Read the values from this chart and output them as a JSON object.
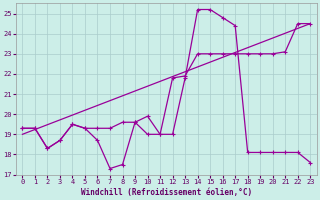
{
  "xlabel": "Windchill (Refroidissement éolien,°C)",
  "background_color": "#cceee8",
  "grid_color": "#aacccc",
  "line_color": "#990099",
  "xlim": [
    -0.5,
    23.5
  ],
  "ylim": [
    17,
    25.5
  ],
  "xticks": [
    0,
    1,
    2,
    3,
    4,
    5,
    6,
    7,
    8,
    9,
    10,
    11,
    12,
    13,
    14,
    15,
    16,
    17,
    18,
    19,
    20,
    21,
    22,
    23
  ],
  "yticks": [
    17,
    18,
    19,
    20,
    21,
    22,
    23,
    24,
    25
  ],
  "line1_x": [
    0,
    1,
    2,
    3,
    4,
    5,
    6,
    7,
    8,
    9,
    10,
    11,
    12,
    13,
    14,
    15,
    16,
    17,
    18,
    19,
    20,
    21,
    22,
    23
  ],
  "line1_y": [
    19.3,
    19.3,
    18.3,
    18.7,
    19.5,
    19.3,
    18.7,
    17.3,
    17.5,
    19.6,
    19.9,
    19.0,
    19.0,
    21.8,
    25.2,
    25.2,
    24.8,
    24.4,
    18.1,
    18.1,
    18.1,
    18.1,
    18.1,
    17.6
  ],
  "line2_x": [
    0,
    1,
    2,
    3,
    4,
    5,
    6,
    7,
    8,
    9,
    10,
    11,
    12,
    13,
    14,
    15,
    16,
    17,
    18,
    19,
    20,
    21,
    22,
    23
  ],
  "line2_y": [
    19.3,
    19.3,
    18.3,
    18.7,
    19.5,
    19.3,
    19.3,
    19.3,
    19.6,
    19.6,
    19.0,
    19.0,
    21.8,
    21.9,
    23.0,
    23.0,
    23.0,
    23.0,
    23.0,
    23.0,
    23.0,
    23.1,
    24.5,
    24.5
  ],
  "line3_x": [
    0,
    23
  ],
  "line3_y": [
    19.0,
    24.5
  ]
}
